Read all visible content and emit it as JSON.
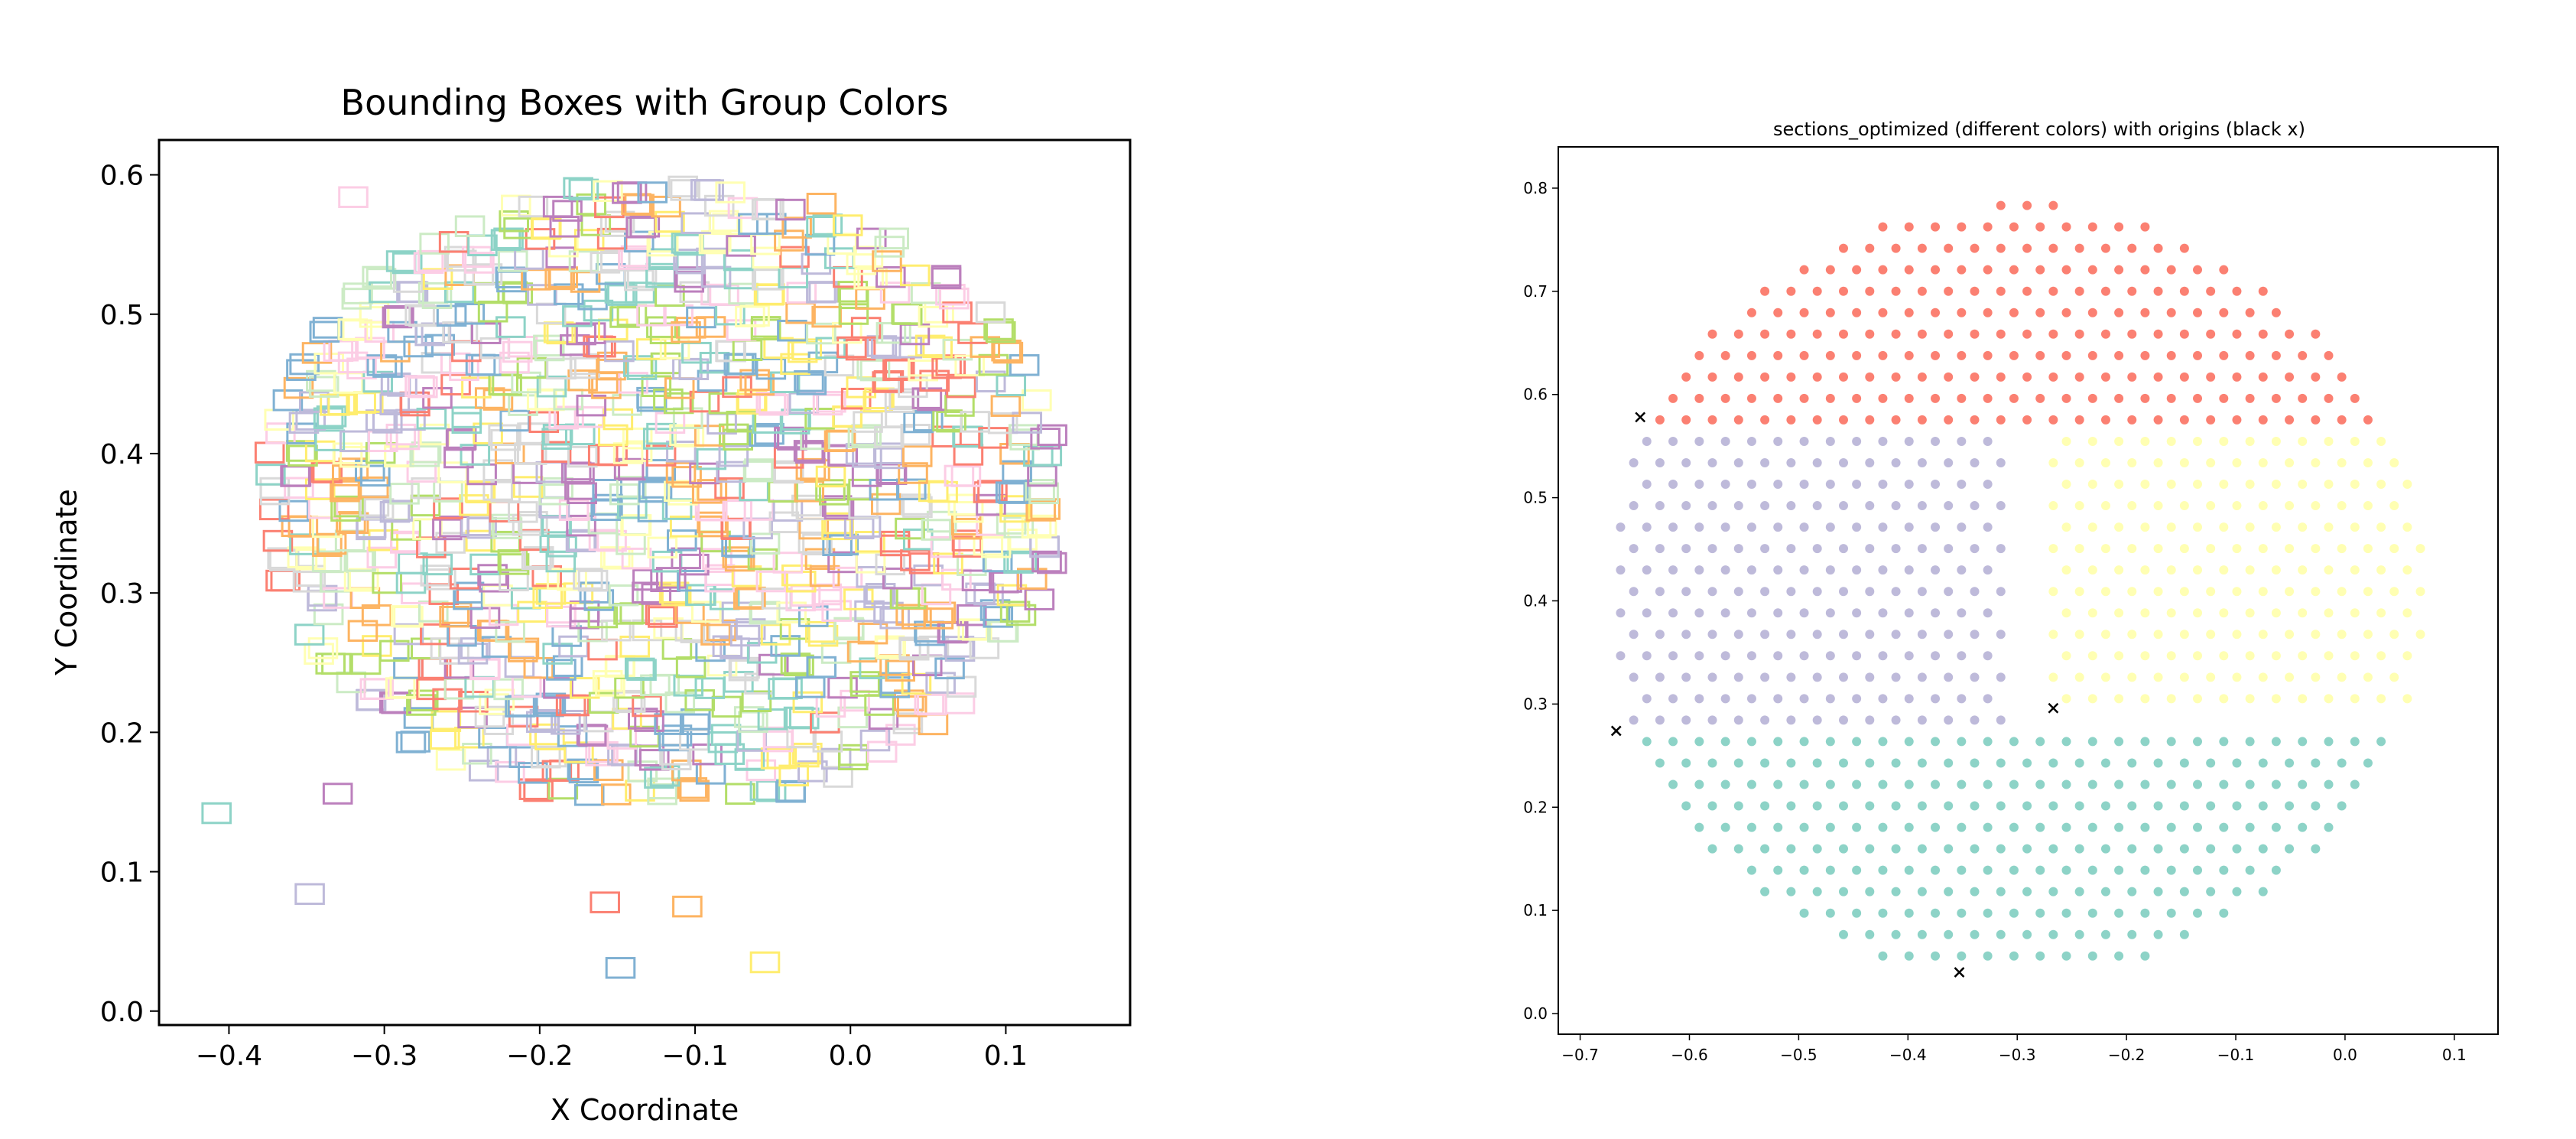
{
  "colors": {
    "palette": [
      "#8dd3c7",
      "#ffffb3",
      "#bebada",
      "#fb8072",
      "#80b1d3",
      "#fdb462",
      "#b3de69",
      "#fccde5",
      "#d9d9d9",
      "#bc80bd",
      "#ccebc5",
      "#ffed6f"
    ],
    "red": "#fb8072",
    "purple": "#bebada",
    "yellow": "#ffffb3",
    "teal": "#8dd3c7",
    "marker": "#000000"
  },
  "chart_data": [
    {
      "type": "scatter",
      "title": "Bounding Boxes with Group Colors",
      "xlabel": "X Coordinate",
      "ylabel": "Y Coordinate",
      "xlim": [
        -0.445,
        0.18
      ],
      "ylim": [
        -0.01,
        0.625
      ],
      "xticks": [
        -0.4,
        -0.3,
        -0.2,
        -0.1,
        0.0,
        0.1
      ],
      "xtick_labels": [
        "−0.4",
        "−0.3",
        "−0.2",
        "−0.1",
        "0.0",
        "0.1"
      ],
      "yticks": [
        0.0,
        0.1,
        0.2,
        0.3,
        0.4,
        0.5,
        0.6
      ],
      "ytick_labels": [
        "0.0",
        "0.1",
        "0.2",
        "0.3",
        "0.4",
        "0.5",
        "0.6"
      ],
      "marker": "hollow square boxes, one per group point",
      "box_size": [
        0.018,
        0.014
      ],
      "cluster": {
        "center": [
          -0.118,
          0.37
        ],
        "radius_x": 0.255,
        "radius_y": 0.225
      },
      "outliers": [
        {
          "x": -0.408,
          "y": 0.142,
          "color": "#8dd3c7"
        },
        {
          "x": -0.32,
          "y": 0.584,
          "color": "#fccde5"
        },
        {
          "x": -0.33,
          "y": 0.156,
          "color": "#bc80bd"
        },
        {
          "x": -0.348,
          "y": 0.084,
          "color": "#bebada"
        },
        {
          "x": -0.158,
          "y": 0.078,
          "color": "#fb8072"
        },
        {
          "x": -0.105,
          "y": 0.075,
          "color": "#fdb462"
        },
        {
          "x": -0.148,
          "y": 0.031,
          "color": "#80b1d3"
        },
        {
          "x": -0.055,
          "y": 0.035,
          "color": "#ffed6f"
        }
      ]
    },
    {
      "type": "scatter",
      "title": "sections_optimized (different colors) with origins (black x)",
      "xlabel": "",
      "ylabel": "",
      "xlim": [
        -0.72,
        0.14
      ],
      "ylim": [
        -0.02,
        0.84
      ],
      "xticks": [
        -0.7,
        -0.6,
        -0.5,
        -0.4,
        -0.3,
        -0.2,
        -0.1,
        0.0,
        0.1
      ],
      "xtick_labels": [
        "−0.7",
        "−0.6",
        "−0.5",
        "−0.4",
        "−0.3",
        "−0.2",
        "−0.1",
        "0.0",
        "0.1"
      ],
      "yticks": [
        0.0,
        0.1,
        0.2,
        0.3,
        0.4,
        0.5,
        0.6,
        0.7,
        0.8
      ],
      "ytick_labels": [
        "0.0",
        "0.1",
        "0.2",
        "0.3",
        "0.4",
        "0.5",
        "0.6",
        "0.7",
        "0.8"
      ],
      "circle": {
        "center": [
          -0.3,
          0.41
        ],
        "radius": 0.375
      },
      "spacing": 0.024,
      "sections": [
        {
          "name": "top",
          "color": "#fb8072",
          "rule": "y >= 0.575"
        },
        {
          "name": "left",
          "color": "#bebada",
          "rule": "0.27 <= y <= 0.555, x <= -0.31"
        },
        {
          "name": "right",
          "color": "#ffffb3",
          "rule": "0.30 <= y <= 0.565, x >= -0.27"
        },
        {
          "name": "bottom",
          "color": "#8dd3c7",
          "rule": "y <= 0.27"
        }
      ],
      "origins": [
        {
          "x": -0.645,
          "y": 0.578
        },
        {
          "x": -0.667,
          "y": 0.274
        },
        {
          "x": -0.267,
          "y": 0.296
        },
        {
          "x": -0.353,
          "y": 0.04
        }
      ]
    }
  ]
}
